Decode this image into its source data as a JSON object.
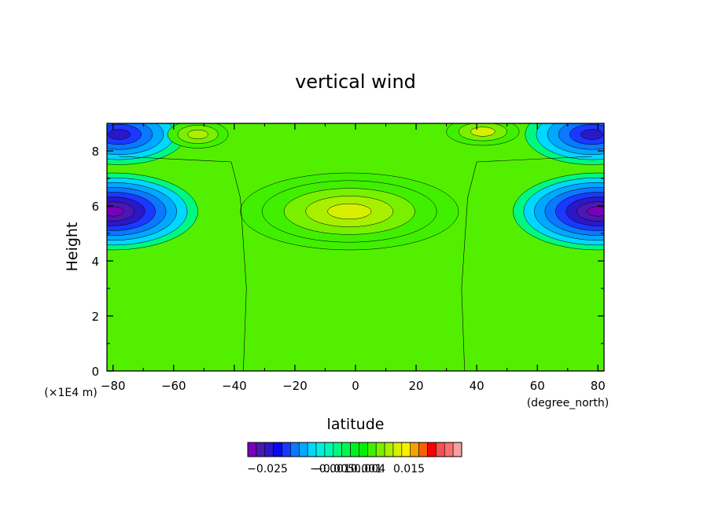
{
  "chart_data": {
    "type": "heatmap",
    "title": "vertical wind",
    "xlabel": "latitude",
    "xunit": "(degree_north)",
    "ylabel": "Height",
    "yunit": "(×1E4 m)",
    "xlim": [
      -82,
      82
    ],
    "ylim": [
      0,
      9
    ],
    "x_ticks": [
      "−80",
      "−60",
      "−40",
      "−20",
      "0",
      "20",
      "40",
      "60",
      "80"
    ],
    "x_tick_values": [
      -80,
      -60,
      -40,
      -20,
      0,
      20,
      40,
      60,
      80
    ],
    "y_ticks": [
      "0",
      "2",
      "4",
      "6",
      "8"
    ],
    "y_tick_values": [
      0,
      2,
      4,
      6,
      8
    ],
    "field_features": [
      {
        "name": "background",
        "value": 0.0005
      },
      {
        "name": "upper-left downdraft",
        "lat": -78,
        "height": 8.6,
        "value": -0.018
      },
      {
        "name": "upper-right downdraft",
        "lat": 78,
        "height": 8.6,
        "value": -0.018
      },
      {
        "name": "mid-left downdraft",
        "lat": -80,
        "height": 5.8,
        "value": -0.024
      },
      {
        "name": "mid-right downdraft",
        "lat": 80,
        "height": 5.8,
        "value": -0.024
      },
      {
        "name": "equatorial updraft",
        "lat": -2,
        "height": 5.8,
        "value": 0.004
      },
      {
        "name": "upper-left updraft",
        "lat": -52,
        "height": 8.6,
        "value": 0.003
      },
      {
        "name": "upper-right updraft",
        "lat": 42,
        "height": 8.7,
        "value": 0.004
      }
    ],
    "colorbar": {
      "levels": [
        -0.025,
        -0.0225,
        -0.02,
        -0.0175,
        -0.015,
        -0.0125,
        -0.01,
        -0.0075,
        -0.005,
        -0.004,
        -0.003,
        -0.002,
        -0.001,
        0,
        0.001,
        0.002,
        0.003,
        0.004,
        0.005,
        0.0075,
        0.01,
        0.0125,
        0.015,
        0.0175,
        0.02
      ],
      "colors": [
        "#7a00b8",
        "#4a18b4",
        "#2a18c8",
        "#0a0ae8",
        "#1a38ff",
        "#0a78ff",
        "#00a8ff",
        "#00d8ff",
        "#00f0e0",
        "#00f8b0",
        "#00f880",
        "#00f850",
        "#00f020",
        "#00f000",
        "#40f000",
        "#78f000",
        "#a8f000",
        "#d8f000",
        "#f8f000",
        "#f8a000",
        "#f86000",
        "#f80000",
        "#f85050",
        "#f87070",
        "#f8a0a0"
      ],
      "labels": [
        "−0.025",
        "−0.005",
        "−0.0010.001",
        "0.004",
        "0.015"
      ]
    }
  }
}
